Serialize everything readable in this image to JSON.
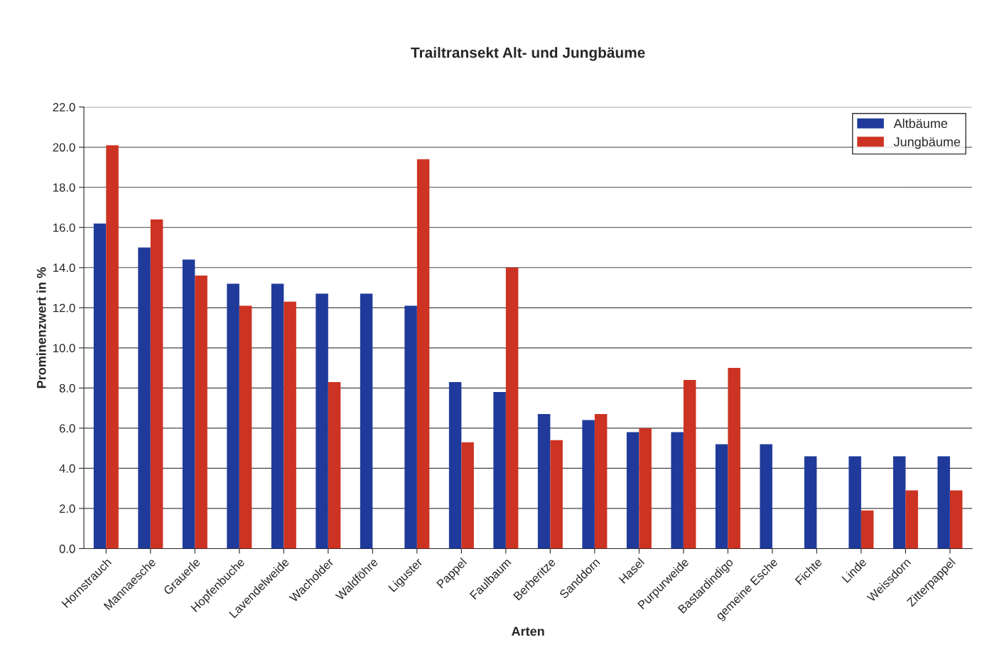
{
  "chart_data": {
    "type": "bar",
    "title": "Trailtransekt Alt- und Jungbäume",
    "xlabel": "Arten",
    "ylabel": "Prominenzwert in %",
    "categories": [
      "Hornstrauch",
      "Mannaesche",
      "Grauerle",
      "Hopfenbuche",
      "Lavendelweide",
      "Wacholder",
      "Waldföhre",
      "Liguster",
      "Pappel",
      "Faulbaum",
      "Berberitze",
      "Sanddorn",
      "Hasel",
      "Purpurweide",
      "Bastardindigo",
      "gemeine Esche",
      "Fichte",
      "Linde",
      "Weissdorn",
      "Zitterpappel"
    ],
    "series": [
      {
        "name": "Altbäume",
        "color": "#1f3a9a",
        "values": [
          16.2,
          15.0,
          14.4,
          13.2,
          13.2,
          12.7,
          12.7,
          12.1,
          8.3,
          7.8,
          6.7,
          6.4,
          5.8,
          5.8,
          5.2,
          5.2,
          4.6,
          4.6,
          4.6,
          4.6
        ]
      },
      {
        "name": "Jungbäume",
        "color": "#cc3322",
        "values": [
          20.1,
          16.4,
          13.6,
          12.1,
          12.3,
          8.3,
          null,
          19.4,
          5.3,
          14.0,
          5.4,
          6.7,
          6.0,
          8.4,
          9.0,
          null,
          null,
          1.9,
          2.9,
          2.9
        ]
      }
    ],
    "ylim": [
      0,
      22
    ],
    "yticks": [
      {
        "value": 0,
        "label": "0.0"
      },
      {
        "value": 2,
        "label": "2.0"
      },
      {
        "value": 4,
        "label": "4.0"
      },
      {
        "value": 6,
        "label": "6.0"
      },
      {
        "value": 8,
        "label": "8.0"
      },
      {
        "value": 10,
        "label": "10.0"
      },
      {
        "value": 12,
        "label": "12.0"
      },
      {
        "value": 14,
        "label": "14.0"
      },
      {
        "value": 16,
        "label": "16.0"
      },
      {
        "value": 18,
        "label": "18.0"
      },
      {
        "value": 20,
        "label": "20.0"
      },
      {
        "value": 22,
        "label": "22.0"
      }
    ],
    "grid": "y",
    "legend": "top right"
  }
}
